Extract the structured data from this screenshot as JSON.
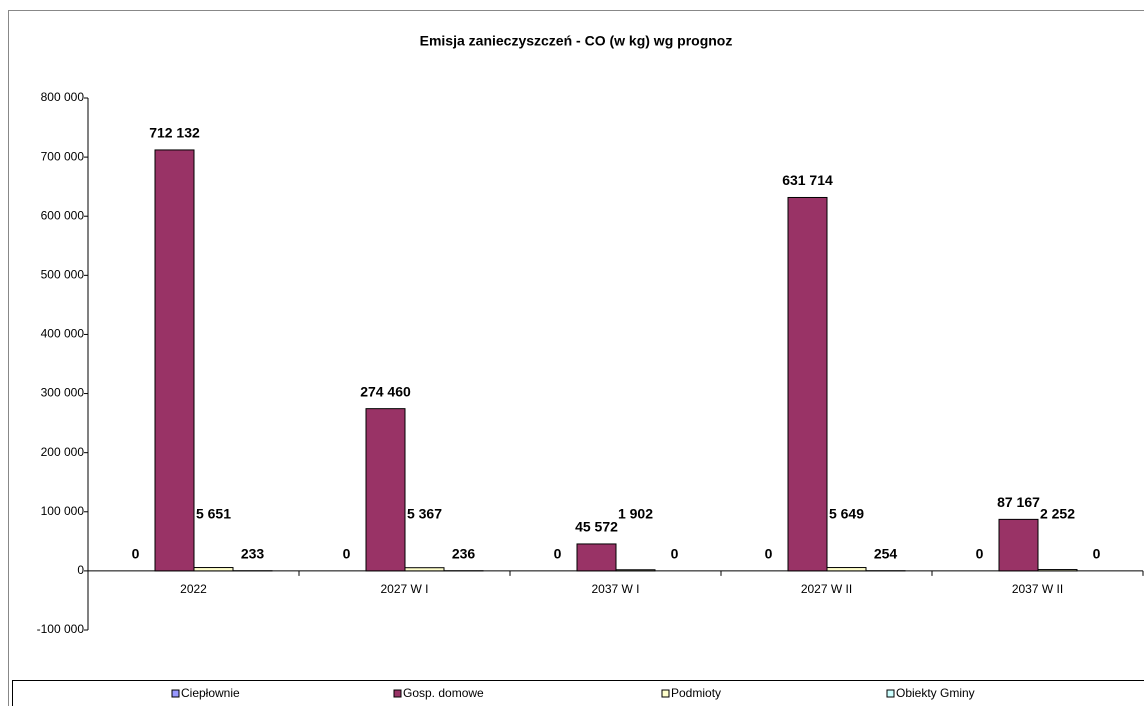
{
  "chart_data": {
    "type": "bar",
    "title": "Emisja zanieczyszczeń - CO  (w kg) wg prognoz",
    "categories": [
      "2022",
      "2027 W I",
      "2037 W I",
      "2027 W II",
      "2037 W II"
    ],
    "series": [
      {
        "name": "Ciepłownie",
        "color": "#9999ff",
        "values": [
          0,
          0,
          0,
          0,
          0
        ]
      },
      {
        "name": "Gosp. domowe",
        "color": "#993366",
        "values": [
          712132,
          274460,
          45572,
          631714,
          87167
        ],
        "value_labels": [
          "712 132",
          "274 460",
          "45 572",
          "631 714",
          "87 167"
        ]
      },
      {
        "name": "Podmioty",
        "color": "#ffffcc",
        "values": [
          5651,
          5367,
          1902,
          5649,
          2252
        ],
        "value_labels": [
          "5 651",
          "5 367",
          "1 902",
          "5 649",
          "2 252"
        ]
      },
      {
        "name": "Obiekty Gminy",
        "color": "#ccffff",
        "values": [
          233,
          236,
          0,
          254,
          0
        ]
      }
    ],
    "ylim": [
      -100000,
      800000
    ],
    "yticks": [
      {
        "value": -100000,
        "label": "-100 000"
      },
      0,
      {
        "value": 100000,
        "label": "100 000"
      },
      {
        "value": 200000,
        "label": "200 000"
      },
      {
        "value": 300000,
        "label": "300 000"
      },
      {
        "value": 400000,
        "label": "400 000"
      },
      {
        "value": 500000,
        "label": "500 000"
      },
      {
        "value": 600000,
        "label": "600 000"
      },
      {
        "value": 700000,
        "label": "700 000"
      },
      {
        "value": 800000,
        "label": "800 000"
      }
    ],
    "grid": false,
    "legend": "bottom"
  }
}
